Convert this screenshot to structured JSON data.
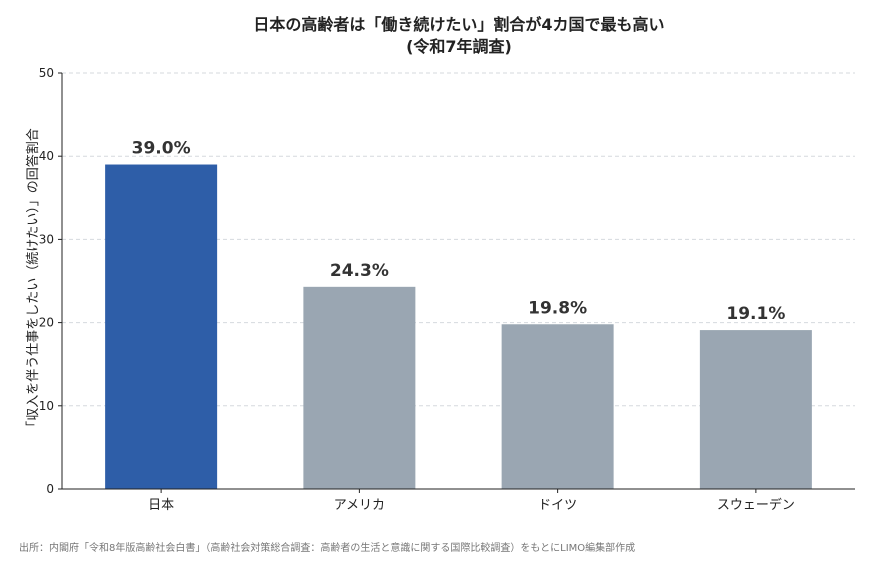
{
  "chart_data": {
    "type": "bar",
    "title": "日本の高齢者は「働き続けたい」割合が4カ国で最も高い",
    "subtitle": "(令和7年調査)",
    "ylabel": "「収入を伴う仕事をしたい（続けたい）」の回答割合",
    "xlabel": "",
    "categories": [
      "日本",
      "アメリカ",
      "ドイツ",
      "スウェーデン"
    ],
    "values": [
      39.0,
      24.3,
      19.8,
      19.1
    ],
    "value_labels": [
      "39.0%",
      "24.3%",
      "19.8%",
      "19.1%"
    ],
    "ylim": [
      0,
      50
    ],
    "yticks": [
      0,
      10,
      20,
      30,
      40,
      50
    ],
    "grid": true,
    "colors": [
      "#2e5ea8",
      "#9aa6b2",
      "#9aa6b2",
      "#9aa6b2"
    ]
  },
  "source": "出所：内閣府「令和8年版高齢社会白書」（高齢社会対策総合調査：高齢者の生活と意識に関する国際比較調査）をもとにLIMO編集部作成"
}
